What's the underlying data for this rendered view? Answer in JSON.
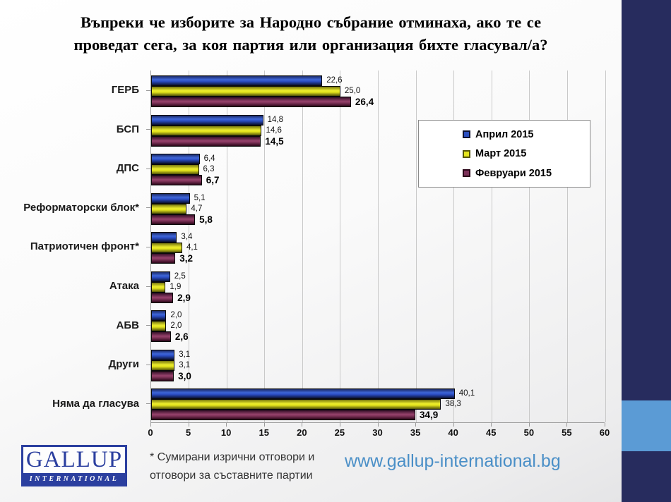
{
  "slide": {
    "title_line1": "Въпреки че изборите за Народно събрание отминаха, ако те се",
    "title_line2": "проведат сега, за коя партия или организация бихте гласувал/а?"
  },
  "chart_data": {
    "type": "bar",
    "orientation": "horizontal",
    "title": "",
    "xlabel": "",
    "ylabel": "",
    "xlim": [
      0,
      60
    ],
    "xticks": [
      0,
      5,
      10,
      15,
      20,
      25,
      30,
      35,
      40,
      45,
      50,
      55,
      60
    ],
    "grid": "vertical",
    "legend_position": "upper-right",
    "categories": [
      "ГЕРБ",
      "БСП",
      "ДПС",
      "Реформаторски блок*",
      "Патриотичен фронт*",
      "Атака",
      "АБВ",
      "Други",
      "Няма да гласува"
    ],
    "series": [
      {
        "name": "Април 2015",
        "color": "#2b4fc0",
        "border_color": "#0d1232",
        "values": [
          22.6,
          14.8,
          6.4,
          5.1,
          3.4,
          2.5,
          2.0,
          3.1,
          40.1
        ]
      },
      {
        "name": "Март 2015",
        "color": "#e6e61e",
        "border_color": "#55550a",
        "values": [
          25.0,
          14.6,
          6.3,
          4.7,
          4.1,
          1.9,
          2.0,
          3.1,
          38.3
        ]
      },
      {
        "name": "Февруари 2015",
        "color": "#7c3158",
        "border_color": "#2a0618",
        "values": [
          26.4,
          14.5,
          6.7,
          5.8,
          3.2,
          2.9,
          2.6,
          3.0,
          34.9
        ]
      }
    ],
    "decimal_separator": ","
  },
  "footer": {
    "logo_line1": "GALLUP",
    "logo_line2": "INTERNATIONAL",
    "footnote_line1": "* Сумирани изрични отговори и",
    "footnote_line2": "отговори за съставните партии",
    "url": "www.gallup-international.bg"
  },
  "colors": {
    "side_band": "#272c5e",
    "side_accent": "#5b9bd5",
    "logo_blue": "#2b3f9f",
    "url_blue": "#4a8fc7",
    "gridline": "#c9c9c9",
    "axis": "#9a9a9a"
  }
}
